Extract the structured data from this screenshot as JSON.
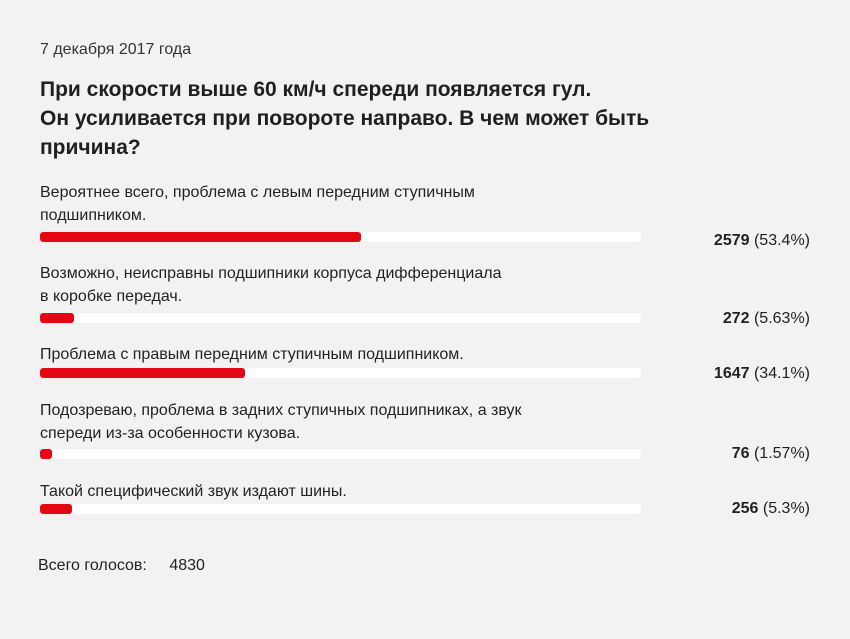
{
  "poll": {
    "date": "7 декабря 2017 года",
    "question_lines": [
      "При скорости выше 60 км/ч спереди появляется гул.",
      "Он усиливается при повороте направо. В чем может быть",
      "причина?"
    ],
    "options": [
      {
        "label_lines": [
          "Вероятнее всего, проблема с левым передним ступичным",
          "подшипником."
        ],
        "count": "2579",
        "percent_text": "(53.4%)",
        "percent_value": 53.4
      },
      {
        "label_lines": [
          "Возможно, неисправны подшипники корпуса дифференциала",
          "в коробке передач."
        ],
        "count": "272",
        "percent_text": "(5.63%)",
        "percent_value": 5.63
      },
      {
        "label_lines": [
          "Проблема с правым передним ступичным подшипником."
        ],
        "count": "1647",
        "percent_text": "(34.1%)",
        "percent_value": 34.1
      },
      {
        "label_lines": [
          "Подозреваю, проблема в задних ступичных подшипниках, а звук",
          "спереди из-за особенности кузова."
        ],
        "count": "76",
        "percent_text": "(1.57%)",
        "percent_value": 1.57
      },
      {
        "label_lines": [
          "Такой специфический звук издают шины."
        ],
        "count": "256",
        "percent_text": "(5.3%)",
        "percent_value": 5.3
      }
    ],
    "total_label": "Всего голосов:",
    "total_value": "4830"
  },
  "colors": {
    "background": "#f2f2f2",
    "bar_fill": "#e30613",
    "bar_track": "#ffffff",
    "text": "#222222"
  }
}
